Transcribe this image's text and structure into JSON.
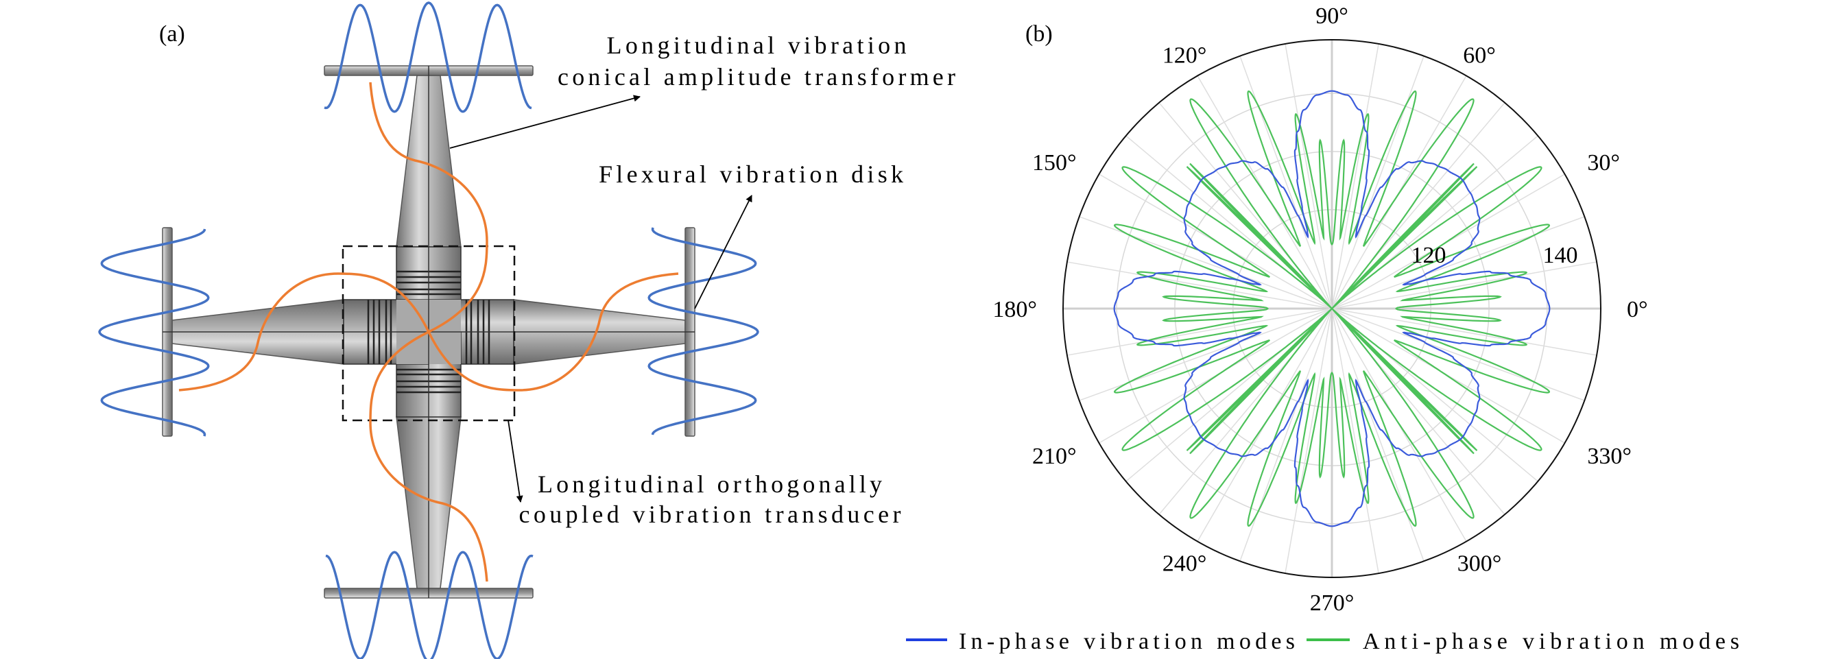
{
  "panel_a": {
    "label": "(a)",
    "annotations": {
      "horn_line1": "Longitudinal vibration",
      "horn_line2": "conical amplitude transformer",
      "disk": "Flexural vibration disk",
      "transducer_line1": "Longitudinal orthogonally",
      "transducer_line2": "coupled vibration transducer"
    },
    "colors": {
      "flexural_wave": "#4472C4",
      "longitudinal_wave": "#ED7D31"
    }
  },
  "panel_b": {
    "label": "(b)",
    "legend": {
      "in_phase": "In-phase vibration modes",
      "anti_phase": "Anti-phase vibration modes"
    }
  },
  "chart_data": {
    "type": "polar",
    "title": "",
    "theta_unit": "degree",
    "theta_tick_labels": [
      "0°",
      "30°",
      "60°",
      "90°",
      "120°",
      "150°",
      "180°",
      "210°",
      "240°",
      "270°",
      "300°",
      "330°"
    ],
    "r_tick_labels": [
      "120",
      "140"
    ],
    "rlim": [
      103,
      149.2
    ],
    "r_gridlines": [
      120,
      130,
      140
    ],
    "theta_gridline_step": 10,
    "legend_position": "bottom",
    "symmetry": "4-fold with mirror about each axis; values given for angle offset 0-45° from nearest axis",
    "series": [
      {
        "name": "In-phase vibration modes",
        "color": "#3b5bdb",
        "phi": [
          0,
          4,
          8,
          11,
          13,
          15,
          16.5,
          17.5,
          18.5,
          20,
          22,
          25,
          28,
          32,
          36,
          40,
          45
        ],
        "value": [
          140.4,
          139.8,
          137.5,
          134,
          131,
          126,
          121,
          117,
          116,
          120,
          125.5,
          129.5,
          131.5,
          132.8,
          133.5,
          134,
          134.5
        ]
      },
      {
        "name": "Anti-phase vibration modes",
        "color": "#4cc15a",
        "base_value": 114,
        "lobes": [
          {
            "phi": 4,
            "peak": 132,
            "width": 1.6
          },
          {
            "phi": 10.5,
            "peak": 137,
            "width": 2.2
          },
          {
            "phi": 21,
            "peak": 143,
            "width": 3.2
          },
          {
            "phi": 34,
            "peak": 146.4,
            "width": 3.8
          },
          {
            "phi": 44.4,
            "peak": 138,
            "width": 0.6
          }
        ]
      }
    ]
  }
}
